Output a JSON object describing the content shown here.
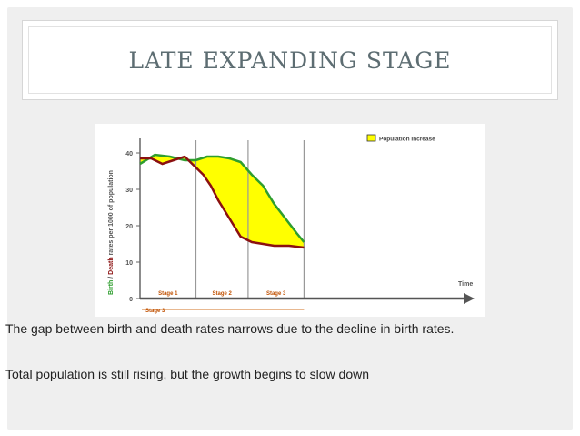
{
  "slide": {
    "title": "LATE EXPANDING STAGE",
    "paragraphs": [
      "The gap between birth and death rates narrows due to the decline in birth rates.",
      "Total population is still rising, but the growth begins to slow down"
    ]
  },
  "chart_data": {
    "type": "area",
    "ylabel_birth": "Birth",
    "ylabel_sep": " / ",
    "ylabel_death": "Death",
    "ylabel_rest": " rates per 1000 of population",
    "xlabel": "Time",
    "yticks": [
      0,
      10,
      20,
      30,
      40
    ],
    "ylim": [
      0,
      42
    ],
    "xlim": [
      0,
      100
    ],
    "stages": [
      {
        "label": "Stage 1",
        "x_start": 0,
        "x_end": 30
      },
      {
        "label": "Stage 2",
        "x_start": 30,
        "x_end": 58
      },
      {
        "label": "Stage 3",
        "x_start": 58,
        "x_end": 88
      }
    ],
    "current_stage_label": "Stage 3",
    "legend": {
      "label": "Population Increase",
      "color": "#ffff00",
      "position": "top-right"
    },
    "birth_series": {
      "color": "#2e9e2e",
      "x": [
        0,
        8,
        16,
        24,
        30,
        36,
        42,
        48,
        54,
        60,
        66,
        72,
        78,
        84,
        88
      ],
      "y": [
        37,
        39.5,
        39,
        38,
        38,
        39,
        39,
        38.5,
        37.5,
        34,
        31,
        26,
        22,
        18,
        15.5
      ]
    },
    "death_series": {
      "color": "#8b1010",
      "x": [
        0,
        6,
        12,
        18,
        24,
        30,
        34,
        38,
        42,
        48,
        54,
        60,
        66,
        72,
        80,
        88
      ],
      "y": [
        38.5,
        38.5,
        37,
        38,
        39,
        36,
        34,
        31,
        27,
        22,
        17,
        15.5,
        15,
        14.5,
        14.5,
        14
      ]
    },
    "fill_color": "#ffff00"
  }
}
